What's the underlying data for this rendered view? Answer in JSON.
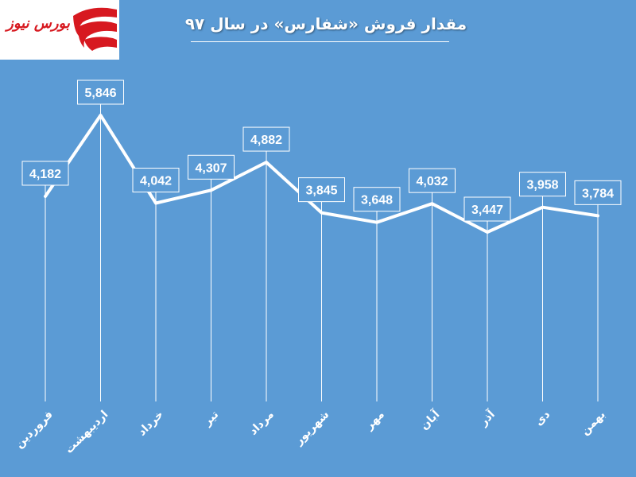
{
  "logo": {
    "text": "بورس نیوز"
  },
  "chart_data": {
    "type": "line",
    "title": "مقدار فروش «شفارس» در سال ۹۷",
    "categories": [
      "فروردین",
      "اردیبهشت",
      "خرداد",
      "تیر",
      "مرداد",
      "شهریور",
      "مهر",
      "آبان",
      "آذر",
      "دی",
      "بهمن"
    ],
    "values": [
      4182,
      5846,
      4042,
      4307,
      4882,
      3845,
      3648,
      4032,
      3447,
      3958,
      3784
    ],
    "value_labels": [
      "4,182",
      "5,846",
      "4,042",
      "4,307",
      "4,882",
      "3,845",
      "3,648",
      "4,032",
      "3,447",
      "3,958",
      "3,784"
    ],
    "xlabel": "",
    "ylabel": "",
    "ylim": [
      0,
      6200
    ],
    "grid": false,
    "legend": "none",
    "colors": {
      "background": "#5b9bd5",
      "line": "#ffffff",
      "label_box": "#5b9bd5",
      "logo_red": "#d71920"
    }
  }
}
